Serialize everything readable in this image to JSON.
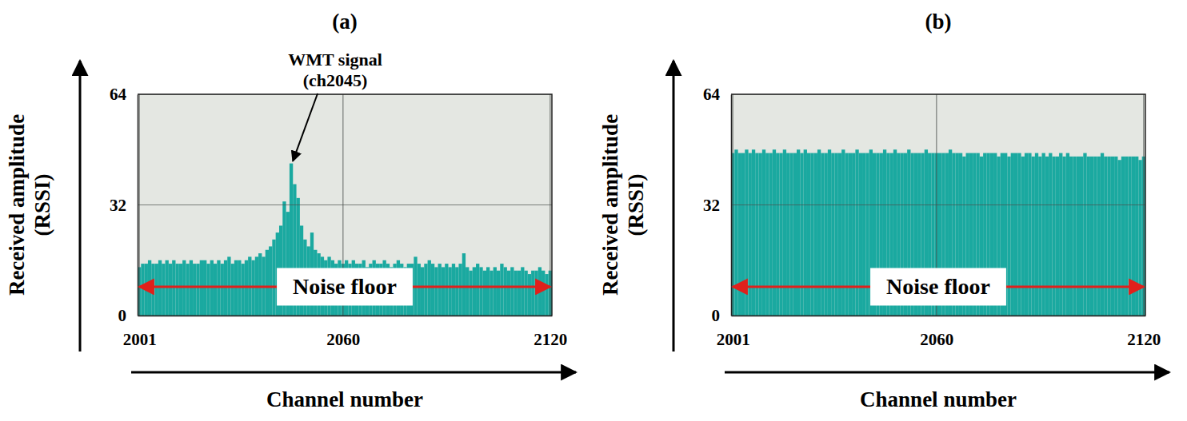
{
  "chart_data": [
    {
      "type": "bar",
      "title": "(a)",
      "x_label": "Channel number",
      "y_label": "Received amplitude (RSSI)",
      "x": [
        2001,
        2002,
        2003,
        2004,
        2005,
        2006,
        2007,
        2008,
        2009,
        2010,
        2011,
        2012,
        2013,
        2014,
        2015,
        2016,
        2017,
        2018,
        2019,
        2020,
        2021,
        2022,
        2023,
        2024,
        2025,
        2026,
        2027,
        2028,
        2029,
        2030,
        2031,
        2032,
        2033,
        2034,
        2035,
        2036,
        2037,
        2038,
        2039,
        2040,
        2041,
        2042,
        2043,
        2044,
        2045,
        2046,
        2047,
        2048,
        2049,
        2050,
        2051,
        2052,
        2053,
        2054,
        2055,
        2056,
        2057,
        2058,
        2059,
        2060,
        2061,
        2062,
        2063,
        2064,
        2065,
        2066,
        2067,
        2068,
        2069,
        2070,
        2071,
        2072,
        2073,
        2074,
        2075,
        2076,
        2077,
        2078,
        2079,
        2080,
        2081,
        2082,
        2083,
        2084,
        2085,
        2086,
        2087,
        2088,
        2089,
        2090,
        2091,
        2092,
        2093,
        2094,
        2095,
        2096,
        2097,
        2098,
        2099,
        2100,
        2101,
        2102,
        2103,
        2104,
        2105,
        2106,
        2107,
        2108,
        2109,
        2110,
        2111,
        2112,
        2113,
        2114,
        2115,
        2116,
        2117,
        2118,
        2119,
        2120
      ],
      "values": [
        14,
        15,
        15,
        16,
        15,
        15,
        16,
        15,
        16,
        15,
        16,
        15,
        15,
        16,
        15,
        16,
        15,
        15,
        16,
        16,
        15,
        16,
        15,
        16,
        15,
        16,
        17,
        15,
        16,
        16,
        15,
        16,
        17,
        16,
        17,
        18,
        17,
        19,
        20,
        22,
        24,
        26,
        33,
        30,
        44,
        38,
        34,
        26,
        22,
        20,
        24,
        19,
        18,
        17,
        16,
        17,
        16,
        15,
        16,
        15,
        16,
        15,
        16,
        15,
        15,
        16,
        14,
        15,
        16,
        15,
        15,
        16,
        15,
        14,
        15,
        16,
        15,
        14,
        15,
        15,
        17,
        15,
        14,
        15,
        16,
        15,
        14,
        15,
        14,
        15,
        14,
        15,
        14,
        15,
        18,
        14,
        13,
        14,
        15,
        14,
        13,
        14,
        13,
        14,
        13,
        15,
        14,
        13,
        14,
        13,
        13,
        14,
        13,
        12,
        13,
        13,
        14,
        13,
        12,
        13
      ],
      "color": "#1aa9a0",
      "xlim": [
        2000.5,
        2120.5
      ],
      "xticks": [
        2001,
        2060,
        2120
      ],
      "ylim": [
        0,
        64
      ],
      "yticks": [
        0,
        32,
        64
      ],
      "grid": true,
      "annotations": [
        {
          "text": "WMT signal (ch2045)",
          "x": 2045
        },
        {
          "text": "Noise floor"
        }
      ]
    },
    {
      "type": "bar",
      "title": "(b)",
      "x_label": "Channel number",
      "y_label": "Received amplitude (RSSI)",
      "x": [
        2001,
        2002,
        2003,
        2004,
        2005,
        2006,
        2007,
        2008,
        2009,
        2010,
        2011,
        2012,
        2013,
        2014,
        2015,
        2016,
        2017,
        2018,
        2019,
        2020,
        2021,
        2022,
        2023,
        2024,
        2025,
        2026,
        2027,
        2028,
        2029,
        2030,
        2031,
        2032,
        2033,
        2034,
        2035,
        2036,
        2037,
        2038,
        2039,
        2040,
        2041,
        2042,
        2043,
        2044,
        2045,
        2046,
        2047,
        2048,
        2049,
        2050,
        2051,
        2052,
        2053,
        2054,
        2055,
        2056,
        2057,
        2058,
        2059,
        2060,
        2061,
        2062,
        2063,
        2064,
        2065,
        2066,
        2067,
        2068,
        2069,
        2070,
        2071,
        2072,
        2073,
        2074,
        2075,
        2076,
        2077,
        2078,
        2079,
        2080,
        2081,
        2082,
        2083,
        2084,
        2085,
        2086,
        2087,
        2088,
        2089,
        2090,
        2091,
        2092,
        2093,
        2094,
        2095,
        2096,
        2097,
        2098,
        2099,
        2100,
        2101,
        2102,
        2103,
        2104,
        2105,
        2106,
        2107,
        2108,
        2109,
        2110,
        2111,
        2112,
        2113,
        2114,
        2115,
        2116,
        2117,
        2118,
        2119,
        2120
      ],
      "values": [
        47,
        48,
        47,
        47,
        48,
        47,
        48,
        47,
        47,
        48,
        47,
        47,
        48,
        47,
        47,
        48,
        47,
        47,
        47,
        48,
        47,
        48,
        47,
        47,
        47,
        48,
        47,
        47,
        48,
        47,
        47,
        47,
        48,
        47,
        47,
        47,
        48,
        47,
        47,
        47,
        48,
        47,
        47,
        47,
        48,
        47,
        47,
        48,
        47,
        47,
        47,
        48,
        47,
        47,
        47,
        47,
        48,
        47,
        47,
        47,
        47,
        47,
        47,
        48,
        47,
        47,
        47,
        46,
        47,
        47,
        47,
        47,
        46,
        47,
        47,
        47,
        47,
        46,
        47,
        47,
        46,
        47,
        47,
        47,
        46,
        47,
        47,
        46,
        47,
        46,
        47,
        46,
        47,
        46,
        46,
        47,
        46,
        47,
        46,
        46,
        46,
        46,
        47,
        46,
        46,
        46,
        46,
        47,
        46,
        46,
        46,
        46,
        45,
        46,
        46,
        46,
        46,
        46,
        45,
        46
      ],
      "color": "#1aa9a0",
      "xlim": [
        2000.5,
        2120.5
      ],
      "xticks": [
        2001,
        2060,
        2120
      ],
      "ylim": [
        0,
        64
      ],
      "yticks": [
        0,
        32,
        64
      ],
      "grid": true,
      "annotations": [
        {
          "text": "Noise floor"
        }
      ]
    }
  ]
}
